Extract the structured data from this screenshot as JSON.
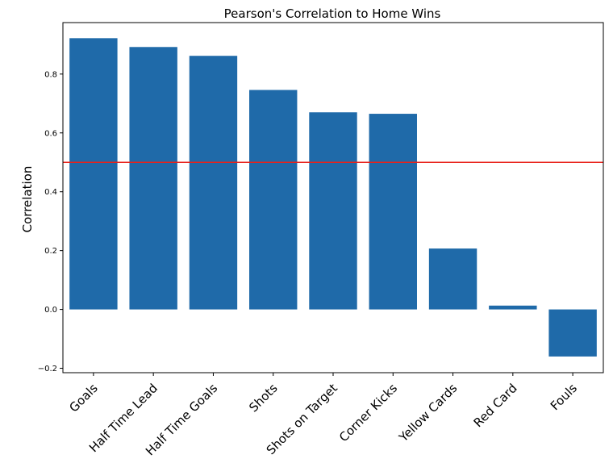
{
  "chart_data": {
    "type": "bar",
    "title": "Pearson's Correlation to Home Wins",
    "xlabel": "",
    "ylabel": "Correlation",
    "categories": [
      "Goals",
      "Half Time Lead",
      "Half Time Goals",
      "Shots",
      "Shots on Target",
      "Corner Kicks",
      "Yellow Cards",
      "Red Card",
      "Fouls"
    ],
    "values": [
      0.922,
      0.892,
      0.862,
      0.746,
      0.67,
      0.665,
      0.207,
      0.013,
      -0.16
    ],
    "ylim": [
      -0.215,
      0.975
    ],
    "yticks": [
      -0.2,
      0.0,
      0.2,
      0.4,
      0.6,
      0.8
    ],
    "ytick_labels": [
      "−0.2",
      "0.0",
      "0.2",
      "0.4",
      "0.6",
      "0.8"
    ],
    "reference_line": {
      "y": 0.5,
      "color": "#e8221b"
    },
    "bar_color": "#1f6aa9",
    "grid": false,
    "legend": "none"
  }
}
